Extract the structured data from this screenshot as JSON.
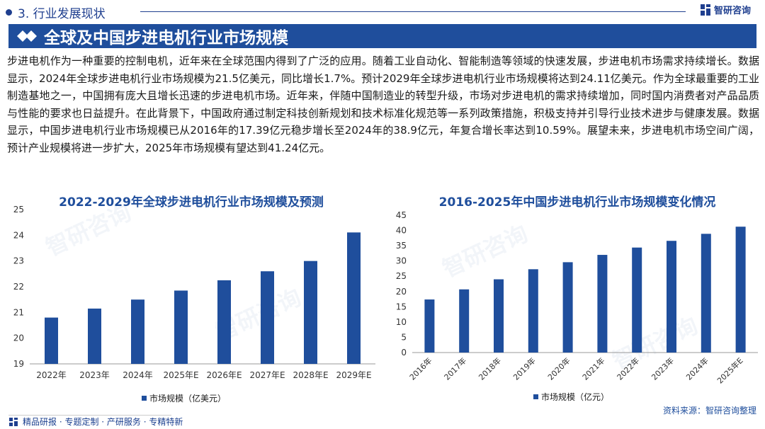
{
  "header": {
    "section_label": "3. 行业发展现状",
    "logo_text": "智研咨询",
    "title": "全球及中国步进电机行业市场规模"
  },
  "paragraph": "步进电机作为一种重要的控制电机，近年来在全球范围内得到了广泛的应用。随着工业自动化、智能制造等领域的快速发展，步进电机市场需求持续增长。数据显示，2024年全球步进电机行业市场规模为21.5亿美元，同比增长1.7%。预计2029年全球步进电机行业市场规模将达到24.11亿美元。作为全球最重要的工业制造基地之一，中国拥有庞大且增长迅速的步进电机市场。近年来，伴随中国制造业的转型升级，市场对步进电机的需求持续增加，同时国内消费者对产品品质与性能的要求也日益提升。在此背景下，中国政府通过制定科技创新规划和技术标准化规范等一系列政策措施，积极支持并引导行业技术进步与健康发展。数据显示，中国步进电机行业市场规模已从2016年的17.39亿元稳步增长至2024年的38.9亿元，年复合增长率达到10.59%。展望未来，步进电机市场空间广阔，预计产业规模将进一步扩大，2025年市场规模有望达到41.24亿元。",
  "watermark_text": "智研咨询",
  "chart_data": [
    {
      "type": "bar",
      "title": "2022-2029年全球步进电机行业市场规模及预测",
      "categories": [
        "2022年",
        "2023年",
        "2024年",
        "2025年E",
        "2026年E",
        "2027年E",
        "2028年E",
        "2029年E"
      ],
      "series": [
        {
          "name": "市场规模（亿美元）",
          "values": [
            20.8,
            21.15,
            21.5,
            21.85,
            22.25,
            22.6,
            23.0,
            24.11
          ]
        }
      ],
      "ylim": [
        19,
        25
      ],
      "yticks": [
        19,
        20,
        21,
        22,
        23,
        24,
        25
      ],
      "xlabel": "",
      "ylabel": "",
      "legend": "bottom",
      "color": "#1f4e9c"
    },
    {
      "type": "bar",
      "title": "2016-2025年中国步进电机行业市场规模变化情况",
      "categories": [
        "2016年",
        "2017年",
        "2018年",
        "2019年",
        "2020年",
        "2021年",
        "2022年",
        "2023年",
        "2024年",
        "2025年E"
      ],
      "series": [
        {
          "name": "市场规模（亿元）",
          "values": [
            17.39,
            20.7,
            24.0,
            27.3,
            29.6,
            32.0,
            34.4,
            36.6,
            38.9,
            41.24
          ]
        }
      ],
      "ylim": [
        0,
        45
      ],
      "yticks": [
        0,
        5,
        10,
        15,
        20,
        25,
        30,
        35,
        40,
        45
      ],
      "xlabel": "",
      "ylabel": "",
      "legend": "bottom",
      "color": "#1f4e9c"
    }
  ],
  "footer": {
    "tags": "精品研报 · 专题定制 · 产研服务 · 专精特新",
    "source": "资料来源：智研咨询整理"
  }
}
